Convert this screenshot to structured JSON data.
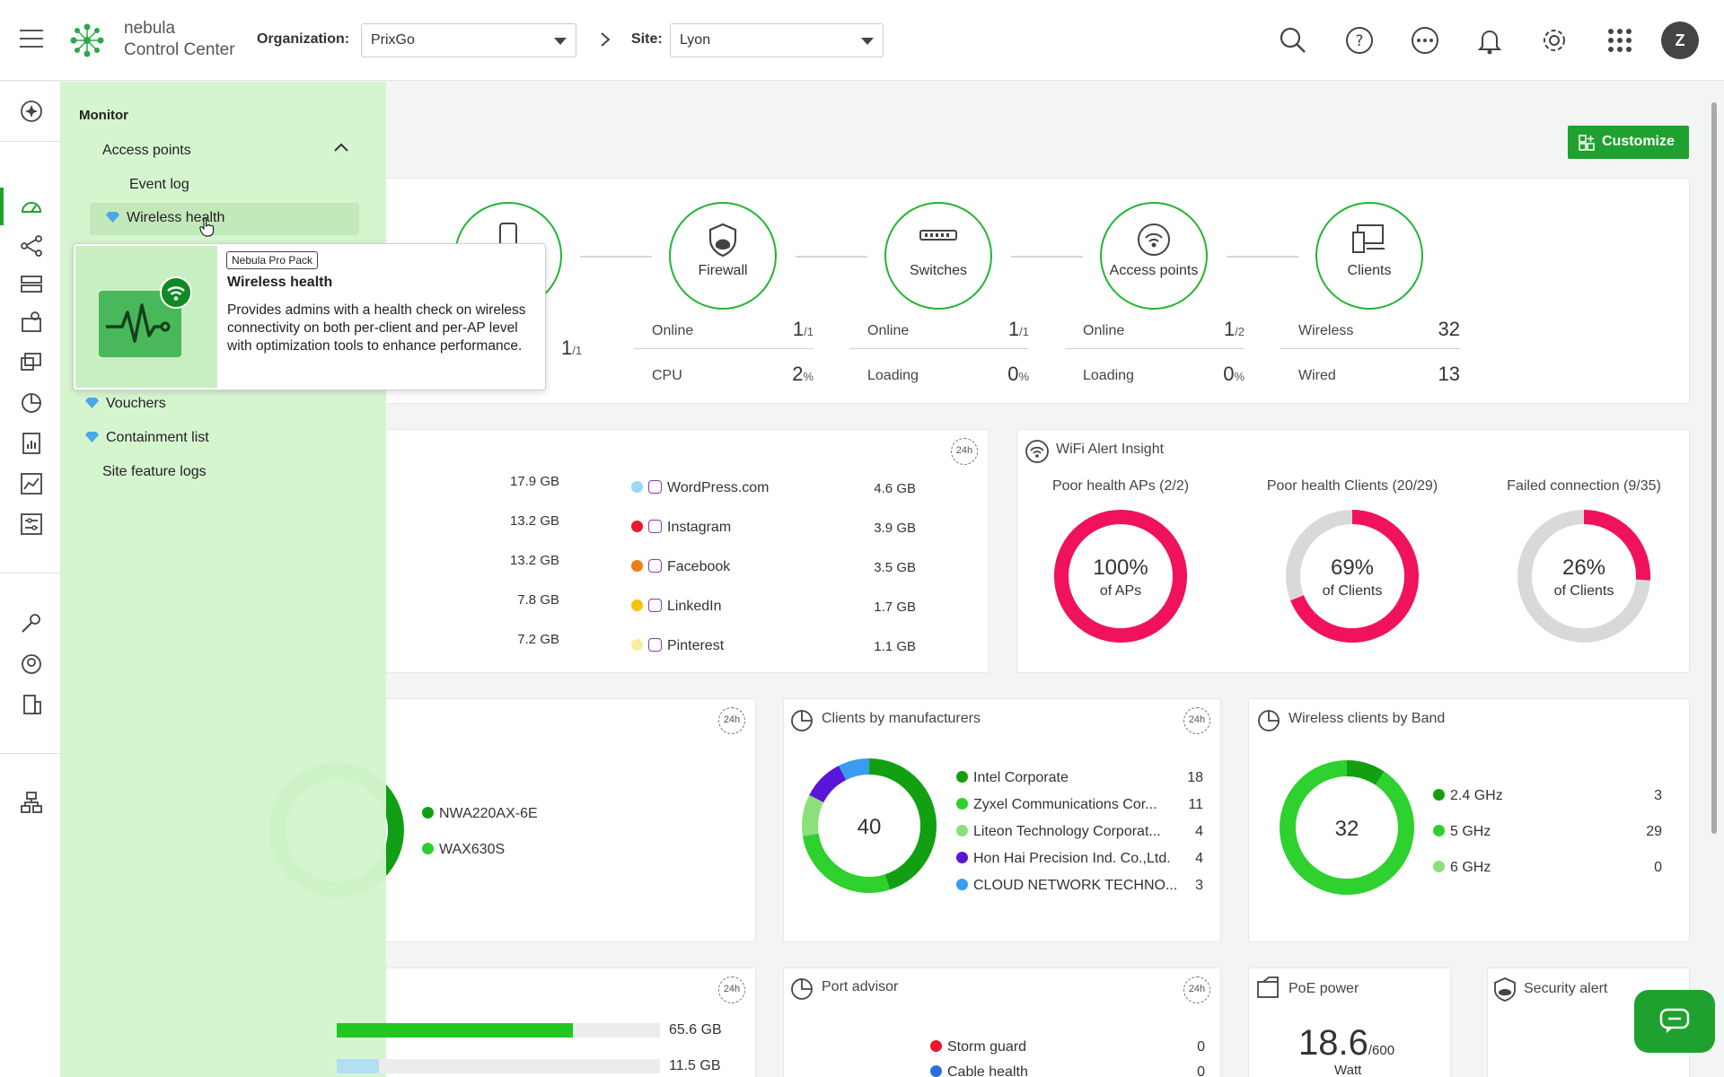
{
  "topbar": {
    "logo_line1": "nebula",
    "logo_line2": "Control Center",
    "org_label": "Organization:",
    "org_value": "PrixGo",
    "site_label": "Site:",
    "site_value": "Lyon",
    "avatar_initial": "Z"
  },
  "dashboard": {
    "customize_label": "Customize",
    "topology": {
      "nodes": [
        {
          "label": "Firewall"
        },
        {
          "label": "Switches"
        },
        {
          "label": "Access points"
        },
        {
          "label": "Clients"
        }
      ],
      "partial_value": "1",
      "partial_unit": "/1",
      "firewall": {
        "online_label": "Online",
        "online_value": "1",
        "online_unit": "/1",
        "cpu_label": "CPU",
        "cpu_value": "2",
        "cpu_unit": "%"
      },
      "switches": {
        "online_label": "Online",
        "online_value": "1",
        "online_unit": "/1",
        "loading_label": "Loading",
        "loading_value": "0",
        "loading_unit": "%"
      },
      "aps": {
        "online_label": "Online",
        "online_value": "1",
        "online_unit": "/2",
        "loading_label": "Loading",
        "loading_value": "0",
        "loading_unit": "%"
      },
      "clients": {
        "wireless_label": "Wireless",
        "wireless_value": "32",
        "wired_label": "Wired",
        "wired_value": "13"
      }
    },
    "apps": {
      "badge": "24h",
      "left_sizes": [
        "17.9 GB",
        "13.2 GB",
        "13.2 GB",
        "7.8 GB",
        "7.2 GB"
      ],
      "right": [
        {
          "name": "WordPress.com",
          "size": "4.6 GB",
          "color": "#9ad8f5"
        },
        {
          "name": "Instagram",
          "size": "3.9 GB",
          "color": "#e8192c"
        },
        {
          "name": "Facebook",
          "size": "3.5 GB",
          "color": "#f07d12"
        },
        {
          "name": "LinkedIn",
          "size": "1.7 GB",
          "color": "#f2c30f"
        },
        {
          "name": "Pinterest",
          "size": "1.1 GB",
          "color": "#f6ee9c"
        }
      ]
    },
    "wifi_alert": {
      "title": "WiFi Alert Insight",
      "items": [
        {
          "caption": "Poor health APs (2/2)",
          "value": "100%",
          "sub": "of APs",
          "fraction": 1.0
        },
        {
          "caption": "Poor health Clients (20/29)",
          "value": "69%",
          "sub": "of Clients",
          "fraction": 0.69
        },
        {
          "caption": "Failed connection (9/35)",
          "value": "26%",
          "sub": "of Clients",
          "fraction": 0.26
        }
      ]
    },
    "ap_models": {
      "badge": "24h",
      "items": [
        {
          "name": "NWA220AX-6E",
          "color": "#129e14"
        },
        {
          "name": "WAX630S",
          "color": "#2fcc2f"
        }
      ]
    },
    "manufacturers": {
      "title": "Clients by manufacturers",
      "badge": "24h",
      "total": "40",
      "items": [
        {
          "name": "Intel Corporate",
          "count": "18",
          "value": 18,
          "color": "#12a012"
        },
        {
          "name": "Zyxel Communications Cor...",
          "count": "11",
          "value": 11,
          "color": "#2ed12e"
        },
        {
          "name": "Liteon Technology Corporat...",
          "count": "4",
          "value": 4,
          "color": "#8ce07a"
        },
        {
          "name": "Hon Hai Precision Ind. Co.,Ltd.",
          "count": "4",
          "value": 4,
          "color": "#5a16d6"
        },
        {
          "name": "CLOUD NETWORK TECHNO...",
          "count": "3",
          "value": 3,
          "color": "#3a9cf0"
        }
      ]
    },
    "band": {
      "title": "Wireless clients by Band",
      "total": "32",
      "items": [
        {
          "name": "2.4 GHz",
          "count": "3",
          "value": 3,
          "color": "#12a012"
        },
        {
          "name": "5 GHz",
          "count": "29",
          "value": 29,
          "color": "#2ed12e"
        },
        {
          "name": "6 GHz",
          "count": "0",
          "value": 0,
          "color": "#8ce07a"
        }
      ]
    },
    "ssid": {
      "badge": "24h",
      "rows": [
        {
          "size": "65.6 GB",
          "fraction": 0.73
        },
        {
          "size": "11.5 GB",
          "fraction": 0.13
        }
      ]
    },
    "port_advisor": {
      "title": "Port advisor",
      "badge": "24h",
      "items": [
        {
          "name": "Storm guard",
          "count": "0",
          "color": "#e8192c"
        },
        {
          "name": "Cable health",
          "count": "0",
          "color": "#2a6fe0"
        }
      ]
    },
    "poe": {
      "title": "PoE power",
      "value": "18.6",
      "max": "/600",
      "unit": "Watt"
    },
    "security": {
      "title": "Security alert"
    }
  },
  "menu": {
    "section": "Monitor",
    "group": "Access points",
    "items_top": [
      "Event log",
      "Wireless health"
    ],
    "items_bottom": [
      {
        "label": "Vouchers",
        "pro": true
      },
      {
        "label": "Containment list",
        "pro": true
      },
      {
        "label": "Site feature logs",
        "pro": false
      }
    ]
  },
  "tooltip": {
    "badge": "Nebula Pro Pack",
    "title": "Wireless health",
    "text": "Provides admins with a health check on wireless connectivity on both per-client and per-AP level with optimization tools to enhance performance."
  },
  "colors": {
    "accent": "#1fa12f",
    "alert": "#f0125a",
    "menu_bg": "#d4f5cd"
  }
}
